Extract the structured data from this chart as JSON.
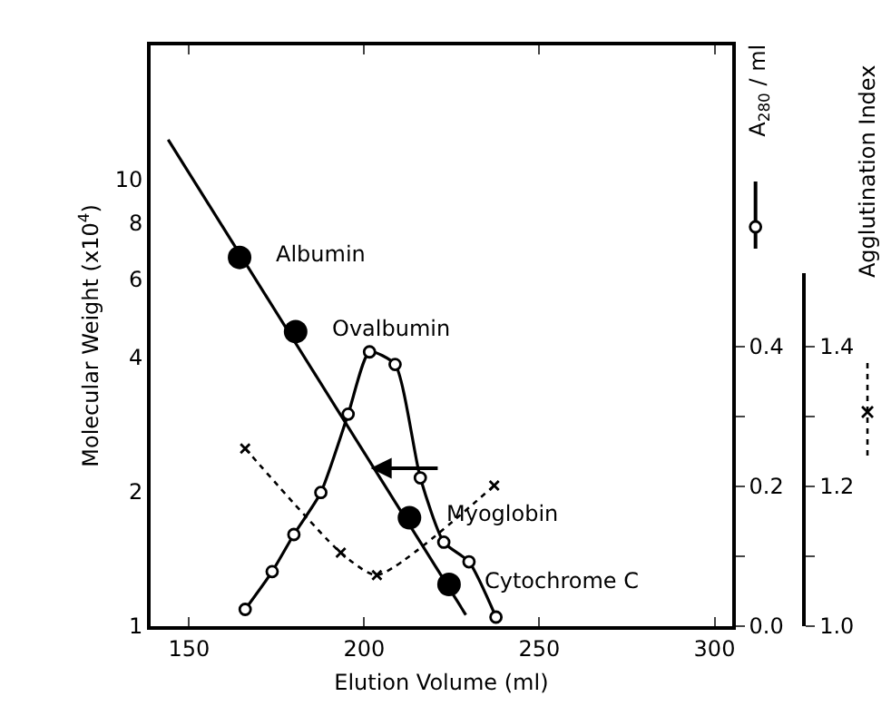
{
  "chart_data": {
    "type": "scatter",
    "xlabel": "Elution Volume (ml)",
    "ylabel": "Molecular Weight (x10$^{4}$)",
    "y2label": "A$_{280}$ / ml",
    "y3label": "Agglutination Index",
    "xlim": [
      139,
      305
    ],
    "xticks": [
      150,
      200,
      250,
      300
    ],
    "ylim": [
      1,
      20
    ],
    "yticks": [
      1,
      2,
      4,
      6,
      8,
      10
    ],
    "log": "y",
    "y2lim": [
      0,
      0.83
    ],
    "y2ticks": [
      {
        "value": 0,
        "label": "0.0"
      },
      {
        "value": 0.1,
        "label": null
      },
      {
        "value": 0.2,
        "label": "0.2"
      },
      {
        "value": 0.3,
        "label": null
      },
      {
        "value": 0.4,
        "label": "0.4"
      }
    ],
    "y3lim": [
      1.0,
      1.505
    ],
    "y3ticks": [
      {
        "value": 1.0,
        "label": "1.0"
      },
      {
        "value": 1.1,
        "label": null
      },
      {
        "value": 1.2,
        "label": "1.2"
      },
      {
        "value": 1.3,
        "label": null
      },
      {
        "value": 1.4,
        "label": "1.4"
      }
    ],
    "grid": false,
    "series": [
      {
        "marker": "circle",
        "color": "#000000",
        "x": [
          164.4,
          180.4,
          212.9,
          224.2
        ],
        "values": [
          6.7,
          4.57,
          1.75,
          1.24
        ]
      },
      {
        "type": "line",
        "marker": "none",
        "line_style": "solid",
        "color": "#000000",
        "x": [
          144,
          229
        ],
        "values": [
          12.3,
          1.06
        ]
      },
      {
        "type": "line",
        "axis": "y2",
        "marker": "circle",
        "line_style": "solid",
        "color": "#000000",
        "x": [
          166.0,
          173.7,
          179.9,
          187.6,
          195.4,
          201.5,
          208.8,
          216.0,
          222.7,
          229.9,
          237.6
        ],
        "values": [
          0.024,
          0.078,
          0.131,
          0.191,
          0.303,
          0.392,
          0.374,
          0.212,
          0.12,
          0.092,
          0.013
        ]
      },
      {
        "type": "line",
        "axis": "y3",
        "marker": "cross",
        "line_style": "dotted",
        "color": "#000000",
        "x": [
          166.0,
          193.3,
          203.6,
          237.1
        ],
        "values": [
          1.254,
          1.105,
          1.073,
          1.201
        ]
      }
    ],
    "annotations": [
      {
        "text": "Albumin",
        "x": 164.4,
        "y": 6.7
      },
      {
        "text": "Ovalbumin",
        "x": 180.4,
        "y": 4.57
      },
      {
        "text": "Myoglobin",
        "x": 212.9,
        "y": 1.75
      },
      {
        "text": "Cytochrome C",
        "x": 224.2,
        "y": 1.24
      }
    ]
  }
}
